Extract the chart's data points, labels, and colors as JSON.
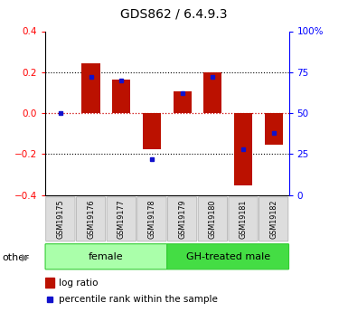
{
  "title": "GDS862 / 6.4.9.3",
  "samples": [
    "GSM19175",
    "GSM19176",
    "GSM19177",
    "GSM19178",
    "GSM19179",
    "GSM19180",
    "GSM19181",
    "GSM19182"
  ],
  "log_ratio": [
    0.0,
    0.245,
    0.165,
    -0.175,
    0.105,
    0.2,
    -0.355,
    -0.155
  ],
  "percentile_rank": [
    0.5,
    0.72,
    0.7,
    0.22,
    0.62,
    0.72,
    0.28,
    0.38
  ],
  "groups": [
    {
      "label": "female",
      "start": 0,
      "end": 4,
      "color": "#aaffaa",
      "edge": "#33cc33"
    },
    {
      "label": "GH-treated male",
      "start": 4,
      "end": 8,
      "color": "#44dd44",
      "edge": "#33cc33"
    }
  ],
  "ylim": [
    -0.4,
    0.4
  ],
  "right_yticks": [
    0,
    25,
    50,
    75,
    100
  ],
  "right_yticklabels": [
    "0",
    "25",
    "50",
    "75",
    "100%"
  ],
  "left_yticks": [
    -0.4,
    -0.2,
    0.0,
    0.2,
    0.4
  ],
  "bar_color": "#bb1100",
  "dot_color": "#1111cc",
  "zero_line_color": "#cc0000",
  "bg_color": "#ffffff",
  "other_label": "other",
  "legend_log_ratio": "log ratio",
  "legend_pct": "percentile rank within the sample",
  "bar_width": 0.6
}
